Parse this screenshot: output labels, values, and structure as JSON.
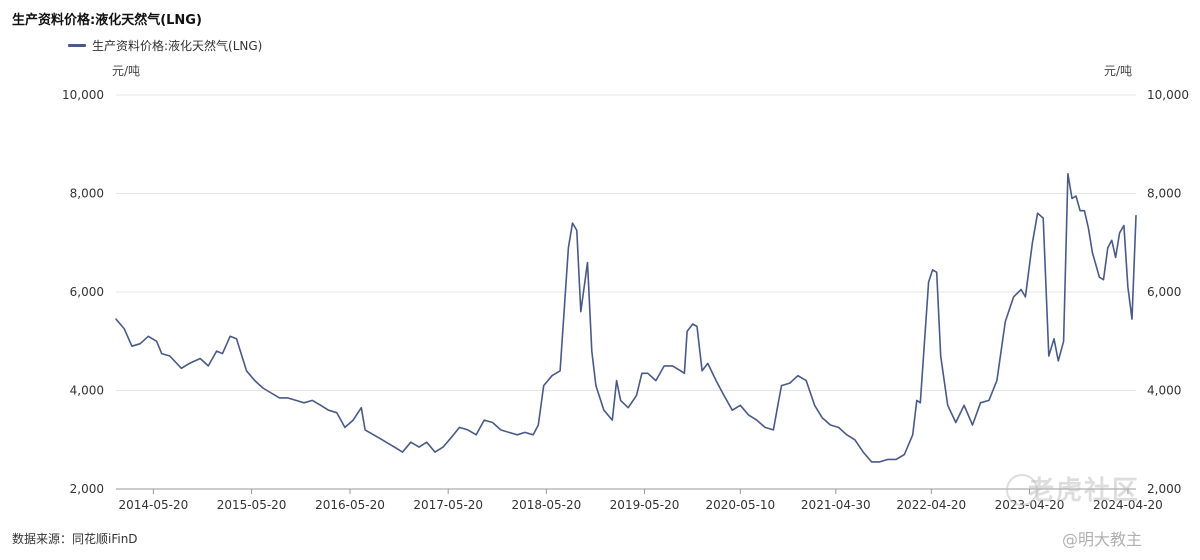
{
  "chart_data": {
    "type": "line",
    "title": "生产资料价格:液化天然气(LNG)",
    "legend": "top-left",
    "ylabel_left": "元/吨",
    "ylabel_right": "元/吨",
    "ylim": [
      2000,
      10000
    ],
    "yticks": [
      2000,
      4000,
      6000,
      8000,
      10000
    ],
    "ytick_labels": [
      "2,000",
      "4,000",
      "6,000",
      "8,000",
      "10,000"
    ],
    "xlim": [
      "2014-01-01",
      "2024-05-20"
    ],
    "xticks": [
      "2014-05-20",
      "2015-05-20",
      "2016-05-20",
      "2017-05-20",
      "2018-05-20",
      "2019-05-20",
      "2020-05-10",
      "2021-04-30",
      "2022-04-20",
      "2023-04-20",
      "2024-04-20"
    ],
    "grid": "horizontal",
    "series": [
      {
        "name": "生产资料价格:液化天然气(LNG)",
        "color": "#4a5a87",
        "points": [
          [
            "2014-01-01",
            5450
          ],
          [
            "2014-02-01",
            5250
          ],
          [
            "2014-03-01",
            4900
          ],
          [
            "2014-04-01",
            4950
          ],
          [
            "2014-05-01",
            5100
          ],
          [
            "2014-06-01",
            5000
          ],
          [
            "2014-06-20",
            4750
          ],
          [
            "2014-07-20",
            4700
          ],
          [
            "2014-09-01",
            4450
          ],
          [
            "2014-10-01",
            4550
          ],
          [
            "2014-11-10",
            4650
          ],
          [
            "2014-12-10",
            4500
          ],
          [
            "2015-01-10",
            4800
          ],
          [
            "2015-02-01",
            4750
          ],
          [
            "2015-03-01",
            5100
          ],
          [
            "2015-03-25",
            5050
          ],
          [
            "2015-05-01",
            4400
          ],
          [
            "2015-06-01",
            4200
          ],
          [
            "2015-07-01",
            4050
          ],
          [
            "2015-08-01",
            3950
          ],
          [
            "2015-09-01",
            3850
          ],
          [
            "2015-10-01",
            3850
          ],
          [
            "2015-11-01",
            3800
          ],
          [
            "2015-12-01",
            3750
          ],
          [
            "2016-01-01",
            3800
          ],
          [
            "2016-02-01",
            3700
          ],
          [
            "2016-03-01",
            3600
          ],
          [
            "2016-04-01",
            3550
          ],
          [
            "2016-05-01",
            3250
          ],
          [
            "2016-06-01",
            3400
          ],
          [
            "2016-07-01",
            3650
          ],
          [
            "2016-07-15",
            3200
          ],
          [
            "2016-09-01",
            3050
          ],
          [
            "2016-10-01",
            2950
          ],
          [
            "2016-11-01",
            2850
          ],
          [
            "2016-12-01",
            2750
          ],
          [
            "2017-01-01",
            2950
          ],
          [
            "2017-02-01",
            2850
          ],
          [
            "2017-03-01",
            2950
          ],
          [
            "2017-04-01",
            2750
          ],
          [
            "2017-05-01",
            2850
          ],
          [
            "2017-06-01",
            3050
          ],
          [
            "2017-07-01",
            3250
          ],
          [
            "2017-08-01",
            3200
          ],
          [
            "2017-09-01",
            3100
          ],
          [
            "2017-10-01",
            3400
          ],
          [
            "2017-11-01",
            3350
          ],
          [
            "2017-12-01",
            3200
          ],
          [
            "2018-01-01",
            3150
          ],
          [
            "2018-02-01",
            3100
          ],
          [
            "2018-03-01",
            3150
          ],
          [
            "2018-04-01",
            3100
          ],
          [
            "2018-04-20",
            3300
          ],
          [
            "2018-05-10",
            4100
          ],
          [
            "2018-06-10",
            4300
          ],
          [
            "2018-07-10",
            4400
          ],
          [
            "2018-08-10",
            6900
          ],
          [
            "2018-08-25",
            7400
          ],
          [
            "2018-09-10",
            7250
          ],
          [
            "2018-09-25",
            5600
          ],
          [
            "2018-10-20",
            6600
          ],
          [
            "2018-11-05",
            4800
          ],
          [
            "2018-11-20",
            4100
          ],
          [
            "2018-12-20",
            3600
          ],
          [
            "2019-01-20",
            3400
          ],
          [
            "2019-02-05",
            4200
          ],
          [
            "2019-02-20",
            3800
          ],
          [
            "2019-03-20",
            3650
          ],
          [
            "2019-04-20",
            3900
          ],
          [
            "2019-05-10",
            4350
          ],
          [
            "2019-06-01",
            4350
          ],
          [
            "2019-07-01",
            4200
          ],
          [
            "2019-08-01",
            4500
          ],
          [
            "2019-09-01",
            4500
          ],
          [
            "2019-10-01",
            4400
          ],
          [
            "2019-10-15",
            4350
          ],
          [
            "2019-10-25",
            5200
          ],
          [
            "2019-11-15",
            5350
          ],
          [
            "2019-12-01",
            5300
          ],
          [
            "2019-12-20",
            4400
          ],
          [
            "2020-01-10",
            4550
          ],
          [
            "2020-02-10",
            4200
          ],
          [
            "2020-03-10",
            3900
          ],
          [
            "2020-04-10",
            3600
          ],
          [
            "2020-05-10",
            3700
          ],
          [
            "2020-06-10",
            3500
          ],
          [
            "2020-07-10",
            3400
          ],
          [
            "2020-08-10",
            3250
          ],
          [
            "2020-09-10",
            3200
          ],
          [
            "2020-09-25",
            3650
          ],
          [
            "2020-10-10",
            4100
          ],
          [
            "2020-11-10",
            4150
          ],
          [
            "2020-12-10",
            4300
          ],
          [
            "2021-01-10",
            4200
          ],
          [
            "2021-02-10",
            3700
          ],
          [
            "2021-03-10",
            3450
          ],
          [
            "2021-04-10",
            3300
          ],
          [
            "2021-05-10",
            3250
          ],
          [
            "2021-06-10",
            3100
          ],
          [
            "2021-07-10",
            3000
          ],
          [
            "2021-08-10",
            2750
          ],
          [
            "2021-09-10",
            2550
          ],
          [
            "2021-10-10",
            2550
          ],
          [
            "2021-11-10",
            2600
          ],
          [
            "2021-12-10",
            2600
          ],
          [
            "2022-01-10",
            2700
          ],
          [
            "2022-02-10",
            3100
          ],
          [
            "2022-02-25",
            3800
          ],
          [
            "2022-03-10",
            3750
          ],
          [
            "2022-04-10",
            6200
          ],
          [
            "2022-04-25",
            6450
          ],
          [
            "2022-05-10",
            6400
          ],
          [
            "2022-05-25",
            4700
          ],
          [
            "2022-06-20",
            3700
          ],
          [
            "2022-07-20",
            3350
          ],
          [
            "2022-08-20",
            3700
          ],
          [
            "2022-09-20",
            3300
          ],
          [
            "2022-10-20",
            3750
          ],
          [
            "2022-11-20",
            3800
          ],
          [
            "2022-12-20",
            4200
          ],
          [
            "2023-01-20",
            5400
          ],
          [
            "2023-02-20",
            5900
          ],
          [
            "2023-03-20",
            6050
          ],
          [
            "2023-04-05",
            5900
          ],
          [
            "2023-05-01",
            7000
          ],
          [
            "2023-05-20",
            7600
          ],
          [
            "2023-06-10",
            7500
          ],
          [
            "2023-07-01",
            4700
          ],
          [
            "2023-07-20",
            5050
          ],
          [
            "2023-08-05",
            4600
          ],
          [
            "2023-08-25",
            5000
          ],
          [
            "2023-09-10",
            8400
          ],
          [
            "2023-09-25",
            7900
          ],
          [
            "2023-10-10",
            7950
          ],
          [
            "2023-10-25",
            7650
          ],
          [
            "2023-11-10",
            7650
          ],
          [
            "2023-11-25",
            7300
          ],
          [
            "2023-12-10",
            6800
          ],
          [
            "2024-01-05",
            6300
          ],
          [
            "2024-01-20",
            6250
          ],
          [
            "2024-02-05",
            6900
          ],
          [
            "2024-02-20",
            7050
          ],
          [
            "2024-03-05",
            6700
          ],
          [
            "2024-03-20",
            7200
          ],
          [
            "2024-04-05",
            7350
          ],
          [
            "2024-04-20",
            6100
          ],
          [
            "2024-05-05",
            5450
          ],
          [
            "2024-05-20",
            7550
          ]
        ]
      }
    ]
  },
  "source_label": "数据来源：同花顺iFinD",
  "watermark": "老虎社区",
  "author": "@明大教主"
}
